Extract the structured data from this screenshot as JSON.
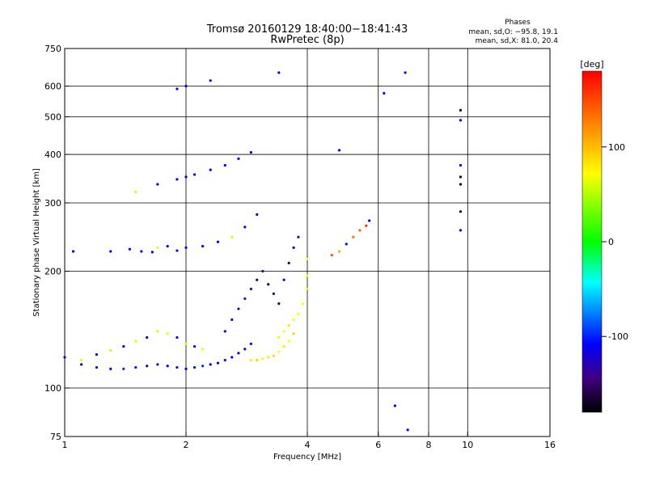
{
  "chart_data": {
    "type": "scatter",
    "title": "Tromsø 20160129 18:40:00−18:41:43",
    "subtitle": "RwPretec (8p)",
    "xlabel": "Frequency [MHz]",
    "ylabel": "Stationary phase Virtual Height [km]",
    "x_scale": "log",
    "y_scale": "log",
    "xlim": [
      1,
      16
    ],
    "ylim": [
      75,
      750
    ],
    "x_ticks": [
      1,
      2,
      4,
      6,
      8,
      10,
      16
    ],
    "y_ticks": [
      75,
      100,
      200,
      300,
      400,
      500,
      600,
      750
    ],
    "x_grid": [
      2,
      4,
      6,
      8,
      10
    ],
    "y_grid": [
      100,
      200,
      300,
      400,
      500,
      600
    ],
    "grid": true,
    "stats": {
      "header": "Phases",
      "line_o": "mean, sd,O: −95.8, 19.1",
      "line_x": "mean, sd,X:  81.0, 20.4"
    },
    "colorbar": {
      "label": "[deg]",
      "placement": "right",
      "range": [
        -180,
        180
      ],
      "ticks": [
        100,
        0,
        -100
      ],
      "colors": [
        "#ff0000",
        "#ff8000",
        "#ffff00",
        "#00ff00",
        "#00ffff",
        "#0000ff",
        "#400080",
        "#000000"
      ]
    },
    "series": [
      {
        "x": [
          1.0,
          1.1,
          1.2,
          1.3,
          1.4,
          1.5,
          1.6,
          1.7,
          1.8,
          1.9,
          2.0,
          2.1,
          2.2,
          2.3,
          2.4,
          2.5,
          2.6,
          2.7,
          2.8,
          2.9
        ],
        "y": [
          120,
          115,
          113,
          112,
          112,
          113,
          114,
          115,
          114,
          113,
          112,
          113,
          114,
          115,
          116,
          118,
          120,
          123,
          126,
          130
        ],
        "phase": [
          -100,
          -100,
          -100,
          -100,
          -90,
          -100,
          -110,
          -95,
          -100,
          -105,
          -100,
          -100,
          -90,
          -100,
          -100,
          -95,
          -100,
          -100,
          -105,
          -100
        ]
      },
      {
        "x": [
          1.1,
          1.2,
          1.3,
          1.4,
          1.5,
          1.6,
          1.7,
          1.8,
          1.9,
          2.0,
          2.1,
          2.2
        ],
        "y": [
          118,
          122,
          125,
          128,
          132,
          135,
          140,
          138,
          135,
          130,
          128,
          126
        ],
        "phase": [
          90,
          -100,
          80,
          -100,
          90,
          -100,
          85,
          90,
          -100,
          80,
          -100,
          90
        ]
      },
      {
        "x": [
          2.9,
          3.0,
          3.1,
          3.2,
          3.3,
          3.4,
          3.5,
          3.6,
          3.7
        ],
        "y": [
          118,
          118,
          119,
          120,
          121,
          124,
          128,
          132,
          138
        ],
        "phase": [
          105,
          110,
          100,
          105,
          110,
          100,
          105,
          100,
          110
        ]
      },
      {
        "x": [
          3.4,
          3.5,
          3.6,
          3.7,
          3.8,
          3.9,
          4.0,
          4.0,
          4.0
        ],
        "y": [
          135,
          140,
          145,
          150,
          155,
          165,
          180,
          195,
          215
        ],
        "phase": [
          95,
          100,
          105,
          100,
          95,
          100,
          105,
          100,
          95
        ]
      },
      {
        "x": [
          2.5,
          2.6,
          2.7,
          2.8,
          2.9,
          3.0,
          3.1,
          3.2,
          3.3,
          3.4,
          3.5,
          3.6,
          3.7,
          3.8
        ],
        "y": [
          140,
          150,
          160,
          170,
          180,
          190,
          200,
          185,
          175,
          165,
          190,
          210,
          230,
          245
        ],
        "phase": [
          -110,
          -120,
          -130,
          -140,
          -130,
          -150,
          -140,
          -160,
          -145,
          -150,
          -140,
          -150,
          -135,
          -140
        ]
      },
      {
        "x": [
          1.05,
          1.3,
          1.45,
          1.55,
          1.65,
          1.7,
          1.8,
          1.9,
          2.0,
          2.2,
          2.4,
          2.6,
          2.8,
          3.0
        ],
        "y": [
          225,
          225,
          228,
          225,
          224,
          230,
          232,
          226,
          230,
          232,
          238,
          245,
          260,
          280
        ],
        "phase": [
          -100,
          -100,
          -100,
          -100,
          -100,
          90,
          -100,
          -100,
          -100,
          -100,
          -100,
          80,
          -100,
          -100
        ]
      },
      {
        "x": [
          1.5,
          1.7,
          1.9,
          2.0,
          2.1,
          2.3,
          2.5,
          2.7,
          2.9
        ],
        "y": [
          320,
          335,
          345,
          350,
          355,
          365,
          375,
          390,
          405
        ],
        "phase": [
          80,
          -100,
          -100,
          -100,
          -100,
          -100,
          -100,
          -100,
          -100
        ]
      },
      {
        "x": [
          4.6,
          4.8,
          5.0,
          5.2,
          5.4,
          5.6,
          5.7
        ],
        "y": [
          220,
          225,
          235,
          245,
          255,
          262,
          270
        ],
        "phase": [
          150,
          120,
          -100,
          135,
          140,
          160,
          -100
        ]
      },
      {
        "x": [
          1.9,
          2.0,
          2.3,
          3.4,
          4.8,
          6.2,
          7.0,
          9.6,
          9.6,
          9.6,
          9.6,
          9.6,
          9.6,
          9.6,
          6.6,
          7.1
        ],
        "y": [
          590,
          600,
          620,
          650,
          410,
          575,
          650,
          520,
          490,
          375,
          350,
          335,
          285,
          255,
          90,
          78
        ],
        "phase": [
          -100,
          -100,
          -100,
          -100,
          -100,
          -100,
          -100,
          -170,
          -100,
          -100,
          -170,
          -170,
          -170,
          -100,
          -100,
          -100
        ]
      }
    ]
  }
}
